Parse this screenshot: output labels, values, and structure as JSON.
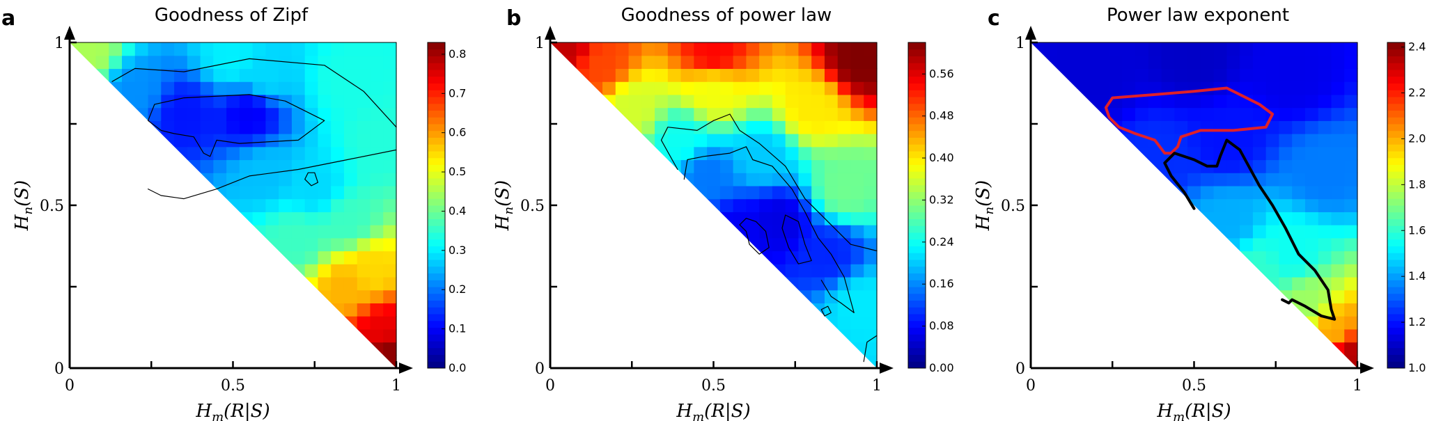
{
  "chart_data": [
    {
      "type": "heatmap",
      "panel_letter": "a",
      "title": "Goodness of Zipf",
      "xlabel": "H_m(R|S)",
      "ylabel": "H_n(S)",
      "xlim": [
        0,
        1
      ],
      "ylim": [
        0,
        1
      ],
      "x_ticks": [
        "0",
        "0.5",
        "1"
      ],
      "y_ticks": [
        "0",
        "0.5",
        "1"
      ],
      "colorbar": {
        "min": 0.0,
        "max": 0.83,
        "ticks": [
          "0.0",
          "0.1",
          "0.2",
          "0.3",
          "0.4",
          "0.5",
          "0.6",
          "0.7",
          "0.8"
        ],
        "tick_values": [
          0.0,
          0.1,
          0.2,
          0.3,
          0.4,
          0.5,
          0.6,
          0.7,
          0.8
        ]
      },
      "field_anchors": [
        {
          "x": 0.55,
          "y": 0.78,
          "v": 0.1
        },
        {
          "x": 0.35,
          "y": 0.78,
          "v": 0.12
        },
        {
          "x": 0.2,
          "y": 0.85,
          "v": 0.22
        },
        {
          "x": 0.6,
          "y": 0.9,
          "v": 0.28
        },
        {
          "x": 0.85,
          "y": 0.88,
          "v": 0.33
        },
        {
          "x": 0.95,
          "y": 0.7,
          "v": 0.34
        },
        {
          "x": 0.6,
          "y": 0.6,
          "v": 0.26
        },
        {
          "x": 0.75,
          "y": 0.55,
          "v": 0.28
        },
        {
          "x": 0.85,
          "y": 0.45,
          "v": 0.36
        },
        {
          "x": 0.7,
          "y": 0.4,
          "v": 0.36
        },
        {
          "x": 0.92,
          "y": 0.3,
          "v": 0.55
        },
        {
          "x": 0.85,
          "y": 0.25,
          "v": 0.58
        },
        {
          "x": 0.96,
          "y": 0.12,
          "v": 0.74
        },
        {
          "x": 0.98,
          "y": 0.05,
          "v": 0.82
        },
        {
          "x": 0.5,
          "y": 0.95,
          "v": 0.3
        },
        {
          "x": 0.05,
          "y": 0.97,
          "v": 0.45
        }
      ],
      "contours": [
        {
          "color": "#000000",
          "width": 1.2,
          "points": [
            [
              0.13,
              0.88
            ],
            [
              0.2,
              0.92
            ],
            [
              0.35,
              0.91
            ],
            [
              0.55,
              0.95
            ],
            [
              0.78,
              0.93
            ],
            [
              0.9,
              0.85
            ],
            [
              1.0,
              0.74
            ]
          ]
        },
        {
          "color": "#000000",
          "width": 1.2,
          "points": [
            [
              0.24,
              0.55
            ],
            [
              0.28,
              0.53
            ],
            [
              0.35,
              0.52
            ],
            [
              0.45,
              0.55
            ],
            [
              0.55,
              0.59
            ],
            [
              0.7,
              0.61
            ],
            [
              0.85,
              0.64
            ],
            [
              1.0,
              0.67
            ]
          ]
        },
        {
          "color": "#000000",
          "width": 1.2,
          "closed": true,
          "points": [
            [
              0.24,
              0.76
            ],
            [
              0.26,
              0.81
            ],
            [
              0.35,
              0.83
            ],
            [
              0.55,
              0.84
            ],
            [
              0.66,
              0.82
            ],
            [
              0.78,
              0.76
            ],
            [
              0.7,
              0.7
            ],
            [
              0.52,
              0.69
            ],
            [
              0.45,
              0.7
            ],
            [
              0.43,
              0.65
            ],
            [
              0.41,
              0.66
            ],
            [
              0.38,
              0.71
            ],
            [
              0.32,
              0.72
            ],
            [
              0.28,
              0.73
            ]
          ]
        },
        {
          "color": "#000000",
          "width": 1.2,
          "closed": true,
          "points": [
            [
              0.72,
              0.58
            ],
            [
              0.74,
              0.56
            ],
            [
              0.76,
              0.57
            ],
            [
              0.75,
              0.6
            ],
            [
              0.73,
              0.6
            ]
          ]
        }
      ]
    },
    {
      "type": "heatmap",
      "panel_letter": "b",
      "title": "Goodness of power law",
      "xlabel": "H_m(R|S)",
      "ylabel": "H_n(S)",
      "xlim": [
        0,
        1
      ],
      "ylim": [
        0,
        1
      ],
      "x_ticks": [
        "0",
        "0.5",
        "1"
      ],
      "y_ticks": [
        "0",
        "0.5",
        "1"
      ],
      "colorbar": {
        "min": 0.0,
        "max": 0.62,
        "ticks": [
          "0.00",
          "0.08",
          "0.16",
          "0.24",
          "0.32",
          "0.40",
          "0.48",
          "0.56"
        ],
        "tick_values": [
          0.0,
          0.08,
          0.16,
          0.24,
          0.32,
          0.4,
          0.48,
          0.56
        ]
      },
      "field_anchors": [
        {
          "x": 0.7,
          "y": 0.45,
          "v": 0.06
        },
        {
          "x": 0.58,
          "y": 0.42,
          "v": 0.07
        },
        {
          "x": 0.85,
          "y": 0.35,
          "v": 0.1
        },
        {
          "x": 0.48,
          "y": 0.6,
          "v": 0.15
        },
        {
          "x": 0.4,
          "y": 0.7,
          "v": 0.24
        },
        {
          "x": 0.65,
          "y": 0.65,
          "v": 0.2
        },
        {
          "x": 0.9,
          "y": 0.55,
          "v": 0.3
        },
        {
          "x": 0.95,
          "y": 0.2,
          "v": 0.22
        },
        {
          "x": 0.25,
          "y": 0.8,
          "v": 0.36
        },
        {
          "x": 0.5,
          "y": 0.85,
          "v": 0.38
        },
        {
          "x": 0.8,
          "y": 0.8,
          "v": 0.4
        },
        {
          "x": 0.15,
          "y": 0.93,
          "v": 0.5
        },
        {
          "x": 0.5,
          "y": 0.97,
          "v": 0.54
        },
        {
          "x": 0.95,
          "y": 0.95,
          "v": 0.62
        },
        {
          "x": 0.05,
          "y": 0.98,
          "v": 0.58
        }
      ],
      "contours": [
        {
          "color": "#000000",
          "width": 1.2,
          "points": [
            [
              0.39,
              0.61
            ],
            [
              0.34,
              0.7
            ],
            [
              0.36,
              0.74
            ],
            [
              0.45,
              0.73
            ],
            [
              0.5,
              0.76
            ],
            [
              0.55,
              0.78
            ],
            [
              0.58,
              0.73
            ],
            [
              0.64,
              0.69
            ],
            [
              0.72,
              0.62
            ],
            [
              0.78,
              0.52
            ],
            [
              0.85,
              0.45
            ],
            [
              0.92,
              0.38
            ],
            [
              1.0,
              0.36
            ]
          ]
        },
        {
          "color": "#000000",
          "width": 1.2,
          "points": [
            [
              0.41,
              0.58
            ],
            [
              0.42,
              0.64
            ],
            [
              0.47,
              0.65
            ],
            [
              0.55,
              0.66
            ],
            [
              0.6,
              0.68
            ],
            [
              0.62,
              0.64
            ],
            [
              0.68,
              0.62
            ],
            [
              0.74,
              0.55
            ],
            [
              0.78,
              0.48
            ],
            [
              0.82,
              0.4
            ],
            [
              0.86,
              0.35
            ],
            [
              0.9,
              0.28
            ],
            [
              0.93,
              0.17
            ],
            [
              0.89,
              0.2
            ],
            [
              0.86,
              0.22
            ],
            [
              0.83,
              0.27
            ]
          ]
        },
        {
          "color": "#000000",
          "width": 1.2,
          "closed": true,
          "points": [
            [
              0.58,
              0.44
            ],
            [
              0.6,
              0.46
            ],
            [
              0.63,
              0.45
            ],
            [
              0.66,
              0.42
            ],
            [
              0.67,
              0.37
            ],
            [
              0.64,
              0.35
            ],
            [
              0.61,
              0.38
            ],
            [
              0.6,
              0.42
            ]
          ]
        },
        {
          "color": "#000000",
          "width": 1.2,
          "closed": true,
          "points": [
            [
              0.72,
              0.47
            ],
            [
              0.76,
              0.45
            ],
            [
              0.78,
              0.38
            ],
            [
              0.8,
              0.33
            ],
            [
              0.76,
              0.32
            ],
            [
              0.73,
              0.37
            ],
            [
              0.71,
              0.43
            ]
          ]
        },
        {
          "color": "#000000",
          "width": 1.2,
          "closed": true,
          "points": [
            [
              0.83,
              0.18
            ],
            [
              0.85,
              0.19
            ],
            [
              0.86,
              0.17
            ],
            [
              0.84,
              0.16
            ]
          ]
        },
        {
          "color": "#000000",
          "width": 1.2,
          "points": [
            [
              0.96,
              0.02
            ],
            [
              0.97,
              0.08
            ],
            [
              1.0,
              0.1
            ]
          ]
        }
      ]
    },
    {
      "type": "heatmap",
      "panel_letter": "c",
      "title": "Power law exponent",
      "xlabel": "H_m(R|S)",
      "ylabel": "H_n(S)",
      "xlim": [
        0,
        1
      ],
      "ylim": [
        0,
        1
      ],
      "x_ticks": [
        "0",
        "0.5",
        "1"
      ],
      "y_ticks": [
        "0",
        "0.5",
        "1"
      ],
      "colorbar": {
        "min": 1.0,
        "max": 2.42,
        "ticks": [
          "1.0",
          "1.2",
          "1.4",
          "1.6",
          "1.8",
          "2.0",
          "2.2",
          "2.4"
        ],
        "tick_values": [
          1.0,
          1.2,
          1.4,
          1.6,
          1.8,
          2.0,
          2.2,
          2.4
        ]
      },
      "field_anchors": [
        {
          "x": 0.5,
          "y": 0.95,
          "v": 1.1
        },
        {
          "x": 0.2,
          "y": 0.9,
          "v": 1.12
        },
        {
          "x": 0.8,
          "y": 0.9,
          "v": 1.15
        },
        {
          "x": 0.6,
          "y": 0.7,
          "v": 1.2
        },
        {
          "x": 0.4,
          "y": 0.65,
          "v": 1.24
        },
        {
          "x": 0.9,
          "y": 0.6,
          "v": 1.35
        },
        {
          "x": 0.6,
          "y": 0.45,
          "v": 1.42
        },
        {
          "x": 0.8,
          "y": 0.35,
          "v": 1.55
        },
        {
          "x": 0.7,
          "y": 0.3,
          "v": 1.6
        },
        {
          "x": 0.85,
          "y": 0.2,
          "v": 1.75
        },
        {
          "x": 0.93,
          "y": 0.12,
          "v": 2.0
        },
        {
          "x": 0.98,
          "y": 0.04,
          "v": 2.35
        }
      ],
      "contours": [
        {
          "color": "#e0202a",
          "width": 4,
          "closed": true,
          "points": [
            [
              0.24,
              0.77
            ],
            [
              0.23,
              0.8
            ],
            [
              0.25,
              0.83
            ],
            [
              0.38,
              0.84
            ],
            [
              0.5,
              0.85
            ],
            [
              0.6,
              0.86
            ],
            [
              0.7,
              0.81
            ],
            [
              0.74,
              0.78
            ],
            [
              0.72,
              0.74
            ],
            [
              0.62,
              0.73
            ],
            [
              0.52,
              0.73
            ],
            [
              0.46,
              0.71
            ],
            [
              0.45,
              0.68
            ],
            [
              0.43,
              0.66
            ],
            [
              0.41,
              0.66
            ],
            [
              0.38,
              0.7
            ],
            [
              0.32,
              0.72
            ],
            [
              0.27,
              0.74
            ]
          ]
        },
        {
          "color": "#000000",
          "width": 4,
          "points": [
            [
              0.5,
              0.49
            ],
            [
              0.47,
              0.54
            ],
            [
              0.43,
              0.59
            ],
            [
              0.41,
              0.63
            ],
            [
              0.44,
              0.66
            ],
            [
              0.5,
              0.64
            ],
            [
              0.54,
              0.62
            ],
            [
              0.57,
              0.62
            ],
            [
              0.58,
              0.65
            ],
            [
              0.6,
              0.7
            ],
            [
              0.64,
              0.67
            ],
            [
              0.7,
              0.56
            ],
            [
              0.74,
              0.5
            ],
            [
              0.78,
              0.43
            ],
            [
              0.82,
              0.35
            ],
            [
              0.87,
              0.3
            ],
            [
              0.91,
              0.24
            ],
            [
              0.92,
              0.18
            ],
            [
              0.93,
              0.15
            ],
            [
              0.89,
              0.16
            ],
            [
              0.84,
              0.19
            ],
            [
              0.8,
              0.21
            ],
            [
              0.79,
              0.2
            ],
            [
              0.77,
              0.21
            ]
          ]
        }
      ]
    }
  ]
}
